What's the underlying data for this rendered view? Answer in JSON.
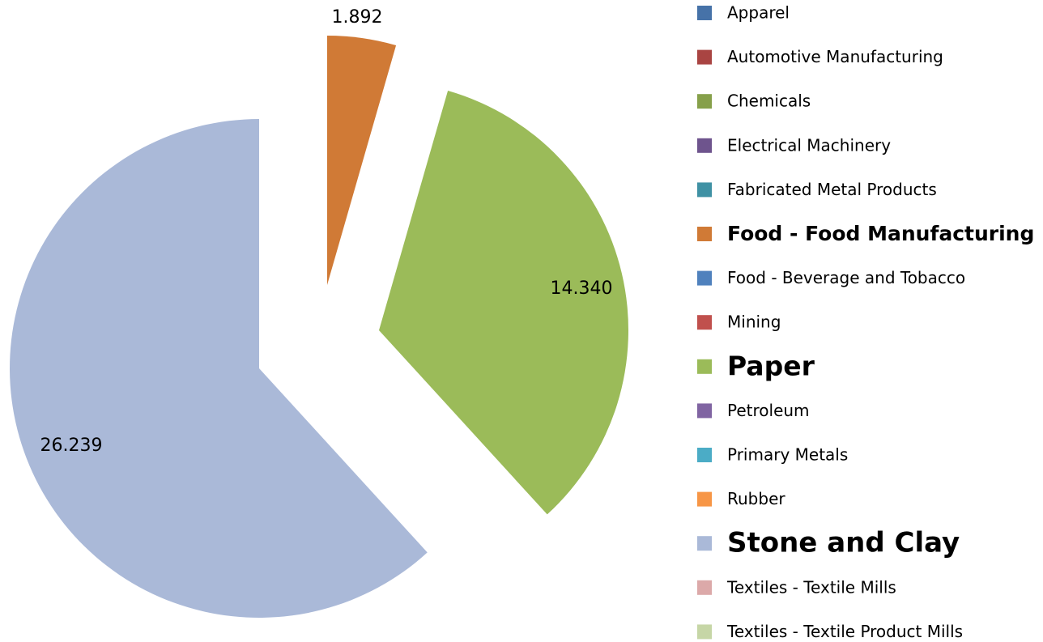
{
  "chart_data": {
    "type": "pie",
    "categories": [
      "Apparel",
      "Automotive Manufacturing",
      "Chemicals",
      "Electrical Machinery",
      "Fabricated Metal Products",
      "Food - Food Manufacturing",
      "Food - Beverage and Tobacco",
      "Mining",
      "Paper",
      "Petroleum",
      "Primary Metals",
      "Rubber",
      "Stone and Clay",
      "Textiles - Textile Mills",
      "Textiles - Textile Product Mills"
    ],
    "values": [
      0,
      0,
      0,
      0,
      0,
      1.892,
      0,
      0,
      14.34,
      0,
      0,
      0,
      26.239,
      0,
      0
    ],
    "value_labels": [
      null,
      null,
      null,
      null,
      null,
      "1.892",
      null,
      null,
      "14.340",
      null,
      null,
      null,
      "26.239",
      null,
      null
    ],
    "colors": [
      "#4672a8",
      "#a94442",
      "#86a04a",
      "#6e548d",
      "#3f91a4",
      "#d07a36",
      "#4f81bd",
      "#c0504d",
      "#9bbb59",
      "#8064a2",
      "#4bacc6",
      "#f79646",
      "#aab9d8",
      "#dca9a9",
      "#c6d6a6"
    ],
    "legend": "right"
  }
}
